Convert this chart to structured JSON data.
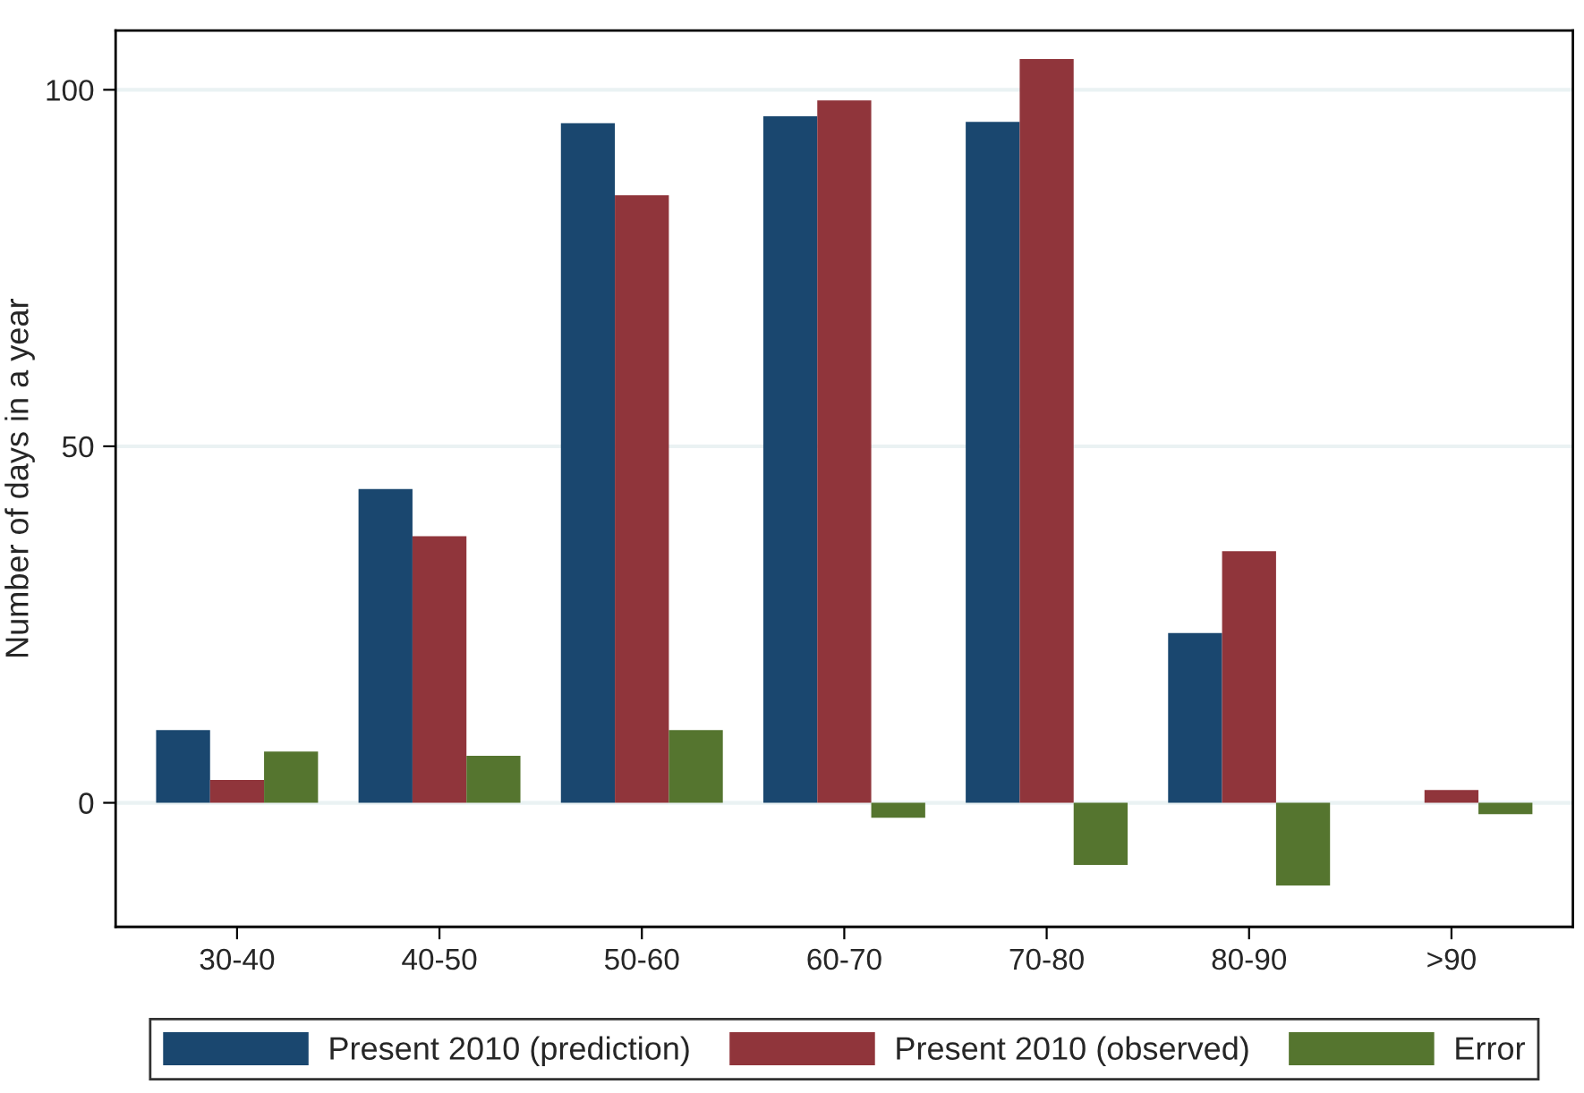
{
  "chart_data": {
    "type": "bar",
    "ylabel": "Number of days in a year",
    "categories": [
      "30-40",
      "40-50",
      "50-60",
      "60-70",
      "70-80",
      "80-90",
      ">90"
    ],
    "series": [
      {
        "name": "Present 2010 (prediction)",
        "color": "#1a476f",
        "values": [
          10.2,
          44,
          95.3,
          96.3,
          95.5,
          23.8,
          0
        ]
      },
      {
        "name": "Present 2010 (observed)",
        "color": "#90353b",
        "values": [
          3.2,
          37.4,
          85.2,
          98.5,
          104.3,
          35.3,
          1.8
        ]
      },
      {
        "name": "Error",
        "color": "#55752f",
        "values": [
          7.2,
          6.6,
          10.2,
          -2.1,
          -8.7,
          -11.6,
          -1.6
        ]
      }
    ],
    "ylim": [
      -17.4,
      108.3
    ],
    "yticks": [
      0,
      50,
      100
    ],
    "grid": "y",
    "legend": "bottom"
  }
}
